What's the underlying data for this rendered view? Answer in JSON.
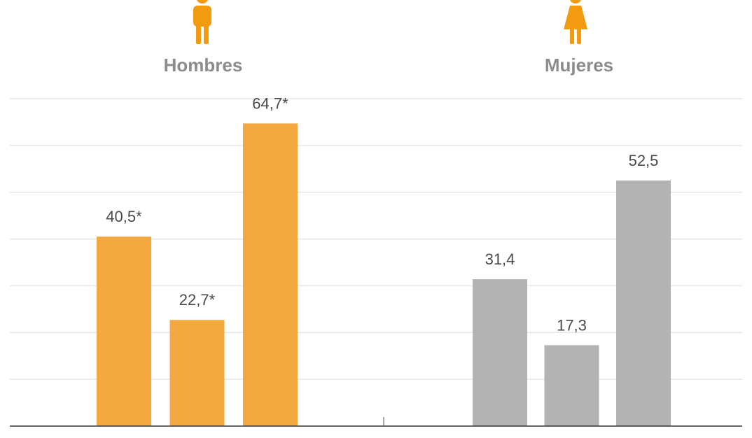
{
  "chart_data": {
    "type": "bar",
    "ylim": [
      0,
      70
    ],
    "grid": true,
    "groups": [
      {
        "title": "Hombres",
        "icon": "male-person-icon",
        "color": "#f4a940",
        "values": [
          40.5,
          22.7,
          64.7
        ],
        "labels": [
          "40,5*",
          "22,7*",
          "64,7*"
        ]
      },
      {
        "title": "Mujeres",
        "icon": "female-person-icon",
        "color": "#b3b3b3",
        "values": [
          31.4,
          17.3,
          52.5
        ],
        "labels": [
          "31,4",
          "17,3",
          "52,5"
        ]
      }
    ]
  },
  "colors": {
    "icon": "#f29b11",
    "title": "#8c8c8c",
    "grid": "#e6e6e6",
    "baseline": "#333333",
    "value_label": "#4a4a4a"
  }
}
